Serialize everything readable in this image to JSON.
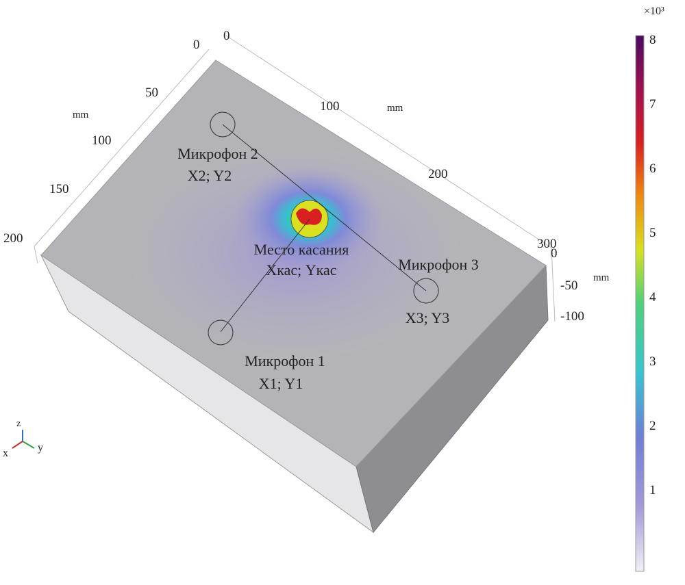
{
  "labels": {
    "mic1_name": "Микрофон 1",
    "mic1_coords": "X1; Y1",
    "mic2_name": "Микрофон 2",
    "mic2_coords": "X2; Y2",
    "mic3_name": "Микрофон 3",
    "mic3_coords": "X3; Y3",
    "touch_name": "Место касания",
    "touch_coords": "Xкас; Yкас"
  },
  "axes": {
    "x_unit": "mm",
    "y_unit": "mm",
    "z_unit": "mm",
    "x_ticks": [
      "0",
      "50",
      "100",
      "150",
      "200"
    ],
    "y_ticks": [
      "0",
      "100",
      "200",
      "300"
    ],
    "z_ticks": [
      "0",
      "-50",
      "-100"
    ],
    "triad": {
      "x": "x",
      "y": "y",
      "z": "z"
    }
  },
  "colorbar": {
    "multiplier": "×10³",
    "ticks": [
      "1",
      "2",
      "3",
      "4",
      "5",
      "6",
      "7",
      "8"
    ],
    "range": [
      0,
      8
    ],
    "colors": [
      "#f2f0f6",
      "#a49ad8",
      "#6f7ed6",
      "#35c4d0",
      "#4fd07a",
      "#d8e020",
      "#f08a10",
      "#d82020",
      "#a01050",
      "#4a0a60"
    ]
  }
}
